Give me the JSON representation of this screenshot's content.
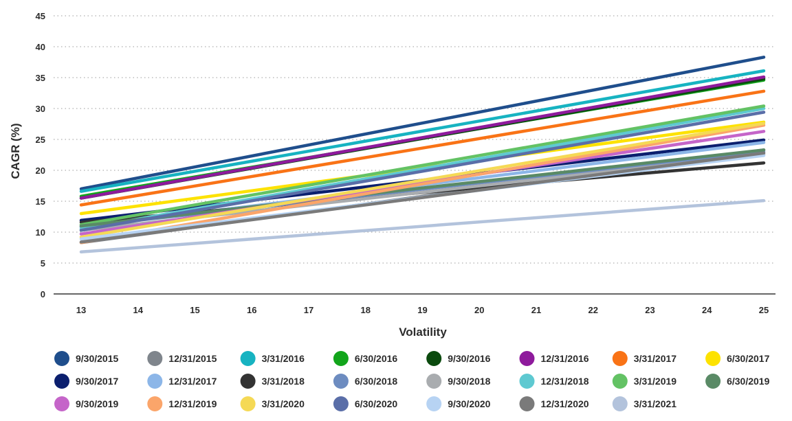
{
  "chart_data": {
    "type": "line",
    "title": "",
    "xlabel": "Volatility",
    "ylabel": "CAGR (%)",
    "xlim": [
      13,
      25
    ],
    "ylim": [
      0,
      45
    ],
    "x_ticks": [
      13,
      14,
      15,
      16,
      17,
      18,
      19,
      20,
      21,
      22,
      23,
      24,
      25
    ],
    "y_ticks": [
      0,
      5,
      10,
      15,
      20,
      25,
      30,
      35,
      40,
      45
    ],
    "grid": "horizontal-dotted",
    "legend_position": "bottom",
    "x": [
      13,
      25
    ],
    "series": [
      {
        "name": "9/30/2015",
        "values": [
          17.0,
          38.3
        ],
        "color": "#1f4e8c"
      },
      {
        "name": "12/31/2015",
        "values": [
          8.3,
          23.3
        ],
        "color": "#7f858c"
      },
      {
        "name": "3/31/2016",
        "values": [
          16.6,
          36.1
        ],
        "color": "#17b3c1"
      },
      {
        "name": "6/30/2016",
        "values": [
          15.8,
          34.6
        ],
        "color": "#12a51b"
      },
      {
        "name": "9/30/2016",
        "values": [
          15.5,
          34.8
        ],
        "color": "#0b4a0e"
      },
      {
        "name": "12/31/2016",
        "values": [
          15.5,
          35.1
        ],
        "color": "#8e1a9c"
      },
      {
        "name": "3/31/2017",
        "values": [
          14.4,
          32.8
        ],
        "color": "#f97316"
      },
      {
        "name": "6/30/2017",
        "values": [
          13.0,
          27.8
        ],
        "color": "#fde200"
      },
      {
        "name": "9/30/2017",
        "values": [
          11.9,
          24.9
        ],
        "color": "#0b1f6e"
      },
      {
        "name": "12/31/2017",
        "values": [
          10.8,
          24.5
        ],
        "color": "#8cb6e8"
      },
      {
        "name": "3/31/2018",
        "values": [
          11.6,
          21.2
        ],
        "color": "#333333"
      },
      {
        "name": "6/30/2018",
        "values": [
          10.9,
          23.0
        ],
        "color": "#6d8cc0"
      },
      {
        "name": "9/30/2018",
        "values": [
          10.3,
          22.6
        ],
        "color": "#a9acaf"
      },
      {
        "name": "12/31/2018",
        "values": [
          10.5,
          30.0
        ],
        "color": "#5ec9d1"
      },
      {
        "name": "3/31/2019",
        "values": [
          11.2,
          30.4
        ],
        "color": "#63c264"
      },
      {
        "name": "6/30/2019",
        "values": [
          11.0,
          23.3
        ],
        "color": "#5a8a66"
      },
      {
        "name": "9/30/2019",
        "values": [
          9.7,
          26.3
        ],
        "color": "#c565c9"
      },
      {
        "name": "12/31/2019",
        "values": [
          8.3,
          27.3
        ],
        "color": "#fba56a"
      },
      {
        "name": "3/31/2020",
        "values": [
          9.2,
          27.6
        ],
        "color": "#f5d955"
      },
      {
        "name": "6/30/2020",
        "values": [
          10.3,
          29.4
        ],
        "color": "#5a6ea8"
      },
      {
        "name": "9/30/2020",
        "values": [
          8.9,
          22.4
        ],
        "color": "#b7d3f3"
      },
      {
        "name": "12/31/2020",
        "values": [
          8.4,
          22.8
        ],
        "color": "#7a7a7a"
      },
      {
        "name": "3/31/2021",
        "values": [
          6.8,
          15.1
        ],
        "color": "#b3c3dc"
      }
    ]
  }
}
